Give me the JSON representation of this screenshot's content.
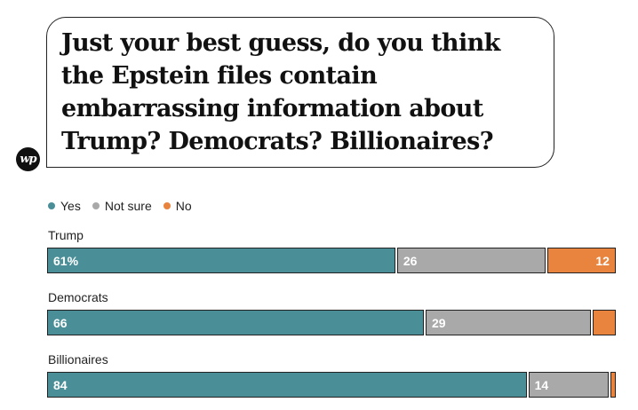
{
  "title": "Just your best guess, do you think the Epstein files contain embarrassing information about Trump? Democrats? Billionaires?",
  "logo": {
    "text": "wp",
    "icon": "washington-post-logo-icon"
  },
  "chart_data": {
    "type": "bar",
    "orientation": "horizontal",
    "stacked": true,
    "legend_position": "top-left",
    "categories": [
      "Trump",
      "Democrats",
      "Billionaires"
    ],
    "series": [
      {
        "name": "Yes",
        "color": "#4a8f98",
        "values": [
          61,
          66,
          84
        ],
        "labels": [
          "61%",
          "66",
          "84"
        ]
      },
      {
        "name": "Not sure",
        "color": "#a9a9a9",
        "values": [
          26,
          29,
          14
        ],
        "labels": [
          "26",
          "29",
          "14"
        ]
      },
      {
        "name": "No",
        "color": "#e8843d",
        "values": [
          12,
          4,
          1
        ],
        "labels": [
          "12",
          "",
          ""
        ]
      }
    ],
    "xlim": [
      0,
      100
    ]
  }
}
